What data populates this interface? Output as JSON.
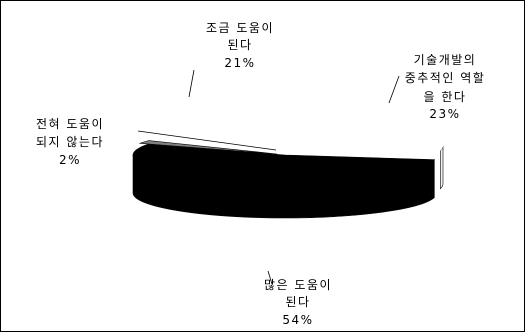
{
  "chart_data": {
    "type": "pie",
    "style": "3d-exploded",
    "title": "",
    "slices": [
      {
        "label_lines": [
          "많은 도움이",
          "된다"
        ],
        "pct_label": "54%",
        "value": 54,
        "color": "#000000"
      },
      {
        "label_lines": [
          "전혀 도움이",
          "되지 않는다"
        ],
        "pct_label": "2%",
        "value": 2,
        "color": "#808080"
      },
      {
        "label_lines": [
          "조금 도움이",
          "된다"
        ],
        "pct_label": "21%",
        "value": 21,
        "color": "#ffffff"
      },
      {
        "label_lines": [
          "기술개발의",
          "중추적인 역할",
          "을 한다"
        ],
        "pct_label": "23%",
        "value": 23,
        "color": "#ffffff"
      }
    ]
  }
}
